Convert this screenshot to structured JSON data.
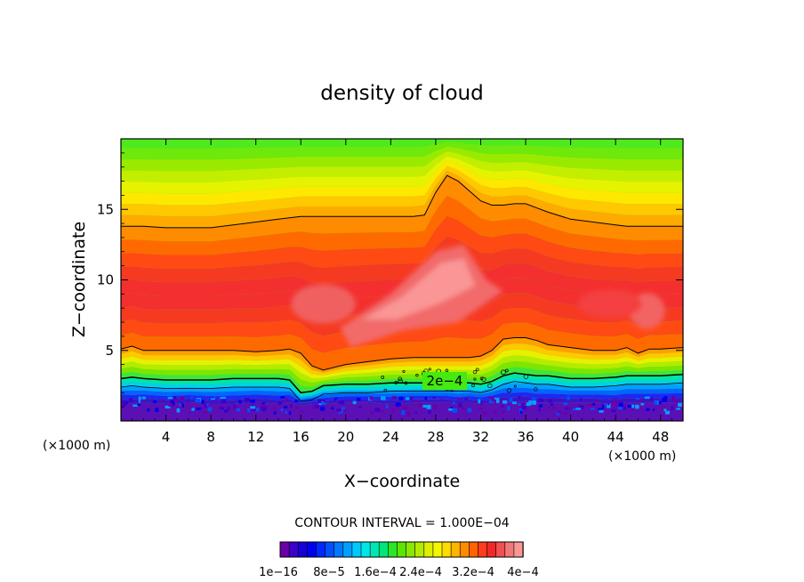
{
  "chart_data": {
    "type": "heatmap",
    "title": "density of cloud",
    "xlabel": "X−coordinate",
    "ylabel": "Z−coordinate",
    "x_unit_left": "(×1000 m)",
    "x_unit_right": "(×1000 m)",
    "xlim": [
      0,
      50
    ],
    "ylim": [
      0,
      20
    ],
    "x_ticks": [
      4,
      8,
      12,
      16,
      20,
      24,
      28,
      32,
      36,
      40,
      44,
      48
    ],
    "x_tick_labels": [
      "4",
      "8",
      "12",
      "16",
      "20",
      "24",
      "28",
      "32",
      "36",
      "40",
      "44",
      "48"
    ],
    "y_ticks": [
      5,
      10,
      15
    ],
    "y_tick_labels": [
      "5",
      "10",
      "15"
    ],
    "contour_interval_text": "CONTOUR INTERVAL = 1.000E−04",
    "contour_label": "2e−4",
    "colorbar": {
      "min": 1e-16,
      "max": 0.0004,
      "tick_labels": [
        "1e−16",
        "8e−5",
        "1.6e−4",
        "2.4e−4",
        "3.2e−4",
        "4e−4"
      ],
      "colors": [
        "#6a00a8",
        "#3c00c8",
        "#1400d8",
        "#0000f0",
        "#0028ff",
        "#0050ff",
        "#0078ff",
        "#00a0ff",
        "#00c8ff",
        "#00e6e6",
        "#00e6b4",
        "#00e678",
        "#28e628",
        "#5ae600",
        "#8ce600",
        "#b4eb00",
        "#dcf000",
        "#f5f500",
        "#ffdc00",
        "#ffb400",
        "#ff8c00",
        "#ff6400",
        "#ff3c1e",
        "#f02828",
        "#f05050",
        "#f07878",
        "#fa9696"
      ]
    },
    "profile_x": [
      0,
      1,
      2,
      4,
      6,
      8,
      10,
      12,
      14,
      15,
      16,
      17,
      18,
      20,
      22,
      24,
      26,
      27,
      28,
      29,
      30,
      31,
      32,
      33,
      34,
      35,
      36,
      37,
      38,
      40,
      42,
      44,
      45,
      46,
      47,
      48,
      50
    ],
    "contour_top_z": [
      13.8,
      13.8,
      13.8,
      13.7,
      13.7,
      13.7,
      13.9,
      14.1,
      14.3,
      14.4,
      14.5,
      14.5,
      14.5,
      14.5,
      14.5,
      14.5,
      14.5,
      14.6,
      16.2,
      17.4,
      17.0,
      16.3,
      15.6,
      15.3,
      15.3,
      15.4,
      15.4,
      15.1,
      14.8,
      14.3,
      14.1,
      13.9,
      13.8,
      13.8,
      13.8,
      13.8,
      13.8
    ],
    "upper_edge_z": [
      5.1,
      5.3,
      5.0,
      5.0,
      5.0,
      5.0,
      5.0,
      4.9,
      5.0,
      5.1,
      4.8,
      3.9,
      3.6,
      4.0,
      4.2,
      4.4,
      4.5,
      4.5,
      4.5,
      4.5,
      4.5,
      4.5,
      4.6,
      5.0,
      5.8,
      5.9,
      5.9,
      5.7,
      5.4,
      5.2,
      5.0,
      5.0,
      5.2,
      4.8,
      5.1,
      5.1,
      5.2
    ],
    "contour_2e4_z": [
      3.0,
      3.1,
      3.0,
      2.9,
      2.9,
      2.9,
      3.0,
      3.0,
      3.0,
      2.9,
      2.0,
      2.1,
      2.5,
      2.6,
      2.6,
      2.7,
      2.7,
      2.7,
      2.7,
      2.7,
      2.7,
      2.7,
      2.6,
      2.8,
      3.2,
      3.4,
      3.3,
      3.2,
      3.2,
      3.0,
      3.0,
      3.1,
      3.2,
      3.2,
      3.2,
      3.2,
      3.3
    ],
    "ground_z": [
      1.3,
      1.2,
      1.3,
      1.2,
      1.3,
      1.2,
      1.2,
      1.3,
      1.2,
      1.3,
      1.1,
      1.2,
      1.2,
      1.3,
      1.3,
      1.2,
      1.3,
      1.3,
      1.3,
      1.3,
      1.2,
      1.3,
      1.2,
      1.3,
      1.4,
      1.3,
      1.4,
      1.3,
      1.3,
      1.3,
      1.3,
      1.2,
      1.3,
      1.3,
      1.3,
      1.3,
      1.3
    ],
    "peak_regions": [
      {
        "center_x": 28.5,
        "center_z": 9.0,
        "value_range": "3.2e-4 to 4e-4"
      },
      {
        "center_x": 18.0,
        "center_z": 8.2,
        "value_range": "3.2e-4 to 3.6e-4"
      },
      {
        "center_x": 46.5,
        "center_z": 7.5,
        "value_range": "3.2e-4 to 3.6e-4"
      }
    ]
  }
}
